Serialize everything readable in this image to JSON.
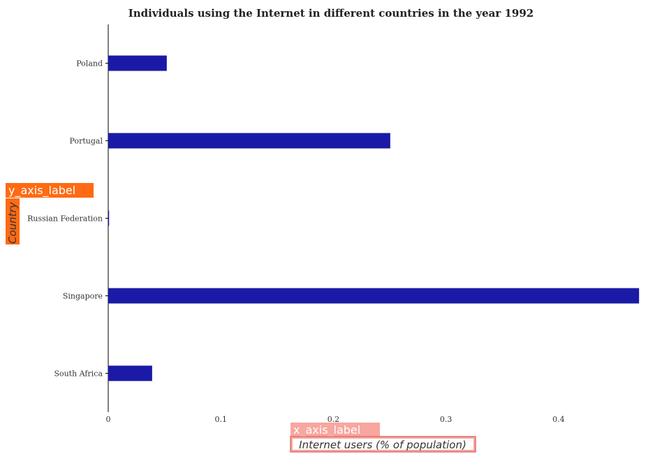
{
  "chart_data": {
    "type": "bar",
    "orientation": "horizontal",
    "title": "Individuals using the Internet in different countries in the year 1992",
    "xlabel": "Internet users (% of population)",
    "ylabel": "Country",
    "x_axis_placeholder": "x_axis_label",
    "y_axis_placeholder": "y_axis_label",
    "categories": [
      "Poland",
      "Portugal",
      "Russian Federation",
      "Singapore",
      "South Africa"
    ],
    "values": [
      0.052,
      0.2505,
      0.0007,
      0.4715,
      0.039
    ],
    "xlim": [
      0,
      0.49
    ],
    "xticks": [
      0,
      0.1,
      0.2,
      0.3,
      0.4
    ],
    "xtick_labels": [
      "0",
      "0.1",
      "0.2",
      "0.3",
      "0.4"
    ],
    "bar_color": "#1a1aa6",
    "grid": false,
    "legend": "none"
  },
  "colors": {
    "y_annotation_bg": "#ff6a13",
    "x_annotation_bg": "#f8a6a0",
    "x_annotation_border": "#e0706a"
  }
}
